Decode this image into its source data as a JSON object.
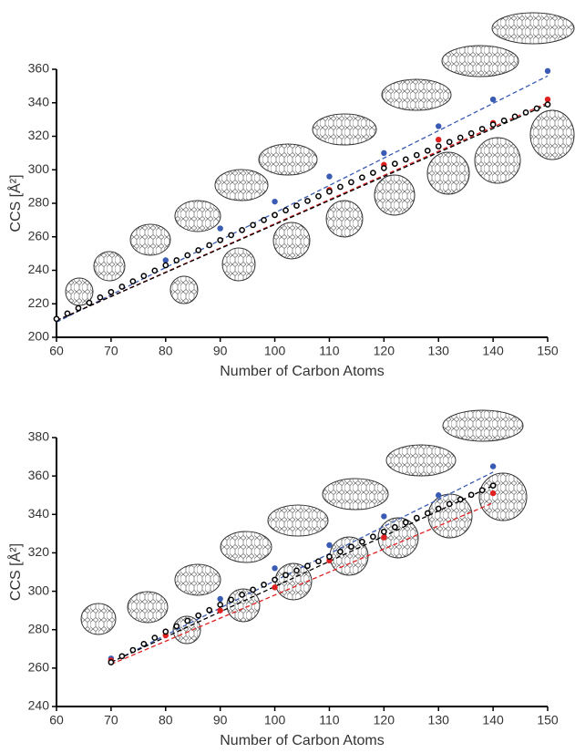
{
  "chart_data": [
    {
      "type": "scatter",
      "xlabel": "Number of Carbon Atoms",
      "ylabel": "CCS [Å²]",
      "xlim": [
        60,
        150
      ],
      "xticks": [
        60,
        70,
        80,
        90,
        100,
        110,
        120,
        130,
        140,
        150
      ],
      "ylim": [
        200,
        360
      ],
      "yticks": [
        200,
        220,
        240,
        260,
        280,
        300,
        320,
        340,
        360
      ],
      "series": [
        {
          "marker": "filled",
          "color": "#3a5bb3",
          "x": [
            60,
            70,
            80,
            90,
            100,
            110,
            120,
            130,
            140,
            150
          ],
          "values": [
            211,
            227,
            246,
            265,
            281,
            296,
            310,
            326,
            342,
            359
          ]
        },
        {
          "marker": "filled",
          "color": "#e02020",
          "x": [
            60,
            70,
            80,
            90,
            100,
            110,
            120,
            130,
            140,
            150
          ],
          "values": [
            211,
            227,
            243,
            258,
            273,
            288,
            303,
            318,
            328,
            342
          ]
        },
        {
          "marker": "open",
          "color": "#000000",
          "x": [
            60,
            62,
            64,
            66,
            68,
            70,
            72,
            74,
            76,
            78,
            80,
            82,
            84,
            86,
            88,
            90,
            92,
            94,
            96,
            98,
            100,
            102,
            104,
            106,
            108,
            110,
            112,
            114,
            116,
            118,
            120,
            122,
            124,
            126,
            128,
            130,
            132,
            134,
            136,
            138,
            140,
            142,
            144,
            146,
            148,
            150
          ],
          "values": [
            211,
            214.2,
            217.4,
            220.6,
            223.8,
            227,
            230.2,
            233.4,
            236.6,
            239.8,
            243,
            246,
            249,
            252,
            255,
            258,
            261,
            264,
            267,
            270,
            273,
            275.8,
            278.6,
            281.4,
            284.2,
            287,
            289.8,
            292.6,
            295.4,
            298.2,
            301,
            303.6,
            306.2,
            308.8,
            311.4,
            314,
            316.6,
            319.2,
            321.8,
            324.4,
            327,
            329.4,
            331.8,
            334.2,
            336.6,
            339
          ]
        },
        {
          "marker": "dashed",
          "color": "#3a5bb3",
          "x": [
            60,
            150
          ],
          "values": [
            209,
            356
          ]
        },
        {
          "marker": "dashed",
          "color": "#e02020",
          "x": [
            60,
            150
          ],
          "values": [
            210,
            340
          ]
        },
        {
          "marker": "dashed",
          "color": "#000000",
          "x": [
            60,
            150
          ],
          "values": [
            210,
            339
          ]
        }
      ]
    },
    {
      "type": "scatter",
      "xlabel": "Number of Carbon Atoms",
      "ylabel": "CCS [Å²]",
      "xlim": [
        60,
        150
      ],
      "xticks": [
        60,
        70,
        80,
        90,
        100,
        110,
        120,
        130,
        140,
        150
      ],
      "ylim": [
        240,
        380
      ],
      "yticks": [
        240,
        260,
        280,
        300,
        320,
        340,
        360,
        380
      ],
      "series": [
        {
          "marker": "filled",
          "color": "#3a5bb3",
          "x": [
            70,
            80,
            90,
            100,
            110,
            120,
            130,
            140
          ],
          "values": [
            265,
            279,
            296,
            312,
            324,
            339,
            350,
            365
          ]
        },
        {
          "marker": "filled",
          "color": "#e02020",
          "x": [
            70,
            80,
            90,
            100,
            110,
            120,
            130,
            140
          ],
          "values": [
            264,
            277,
            290,
            302,
            316,
            328,
            343,
            351
          ]
        },
        {
          "marker": "open",
          "color": "#000000",
          "x": [
            70,
            72,
            74,
            76,
            78,
            80,
            82,
            84,
            86,
            88,
            90,
            92,
            94,
            96,
            98,
            100,
            102,
            104,
            106,
            108,
            110,
            112,
            114,
            116,
            118,
            120,
            122,
            124,
            126,
            128,
            130,
            132,
            134,
            136,
            138,
            140
          ],
          "values": [
            263,
            266.2,
            269.4,
            272.6,
            275.8,
            279,
            281.8,
            284.6,
            287.4,
            290.2,
            293,
            295.6,
            298.2,
            300.8,
            303.4,
            306,
            308.4,
            310.8,
            313.2,
            315.6,
            318,
            320.6,
            323.2,
            325.8,
            328.4,
            331,
            333.4,
            335.8,
            338.2,
            340.6,
            343,
            345.4,
            347.8,
            350.2,
            352.6,
            355
          ]
        },
        {
          "marker": "dashed",
          "color": "#3a5bb3",
          "x": [
            70,
            140
          ],
          "values": [
            263,
            362
          ]
        },
        {
          "marker": "dashed",
          "color": "#e02020",
          "x": [
            70,
            140
          ],
          "values": [
            262,
            346
          ]
        },
        {
          "marker": "dashed",
          "color": "#000000",
          "x": [
            70,
            140
          ],
          "values": [
            263,
            355
          ]
        }
      ]
    }
  ]
}
